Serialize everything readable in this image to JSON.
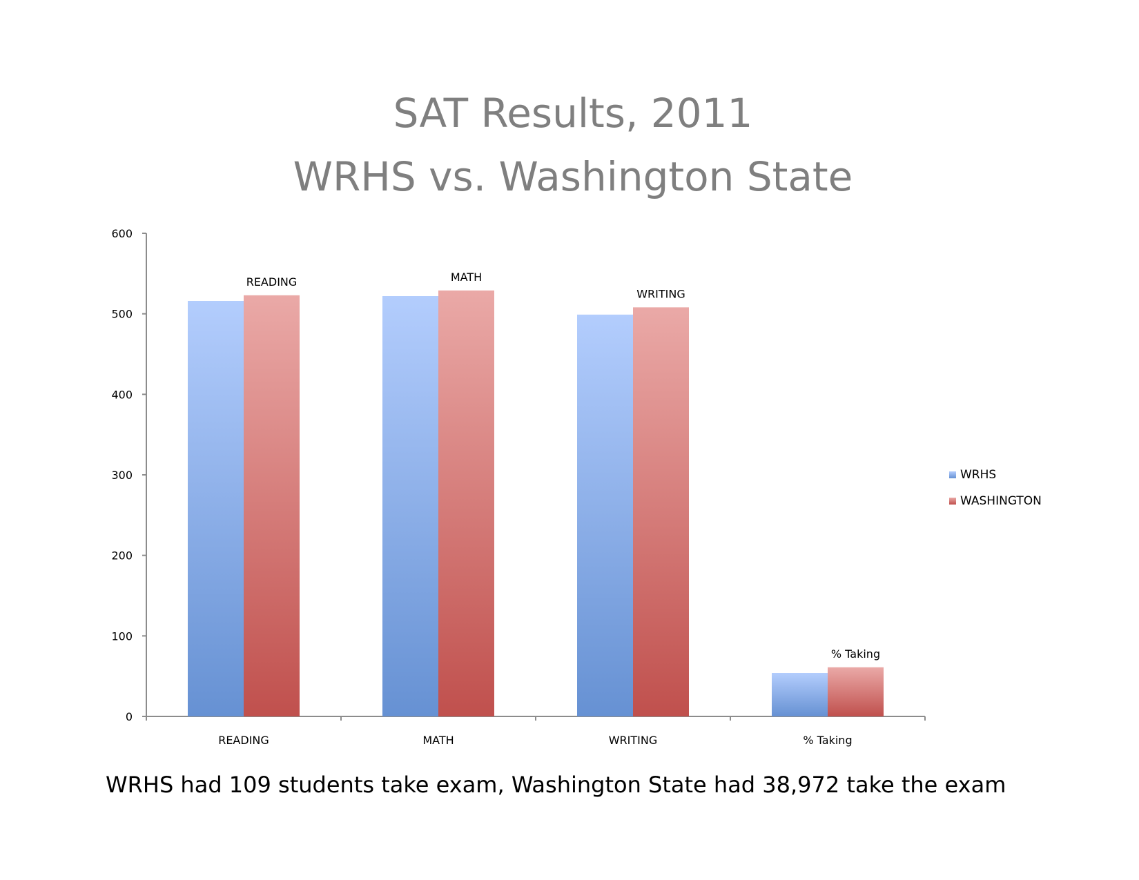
{
  "chart_data": {
    "type": "bar",
    "title": [
      "SAT Results, 2011",
      "WRHS  vs. Washington State"
    ],
    "categories": [
      "READING",
      "MATH",
      "WRITING",
      "% Taking"
    ],
    "series": [
      {
        "name": "WRHS",
        "values": [
          516,
          522,
          499,
          54
        ]
      },
      {
        "name": "WASHINGTON",
        "values": [
          523,
          529,
          508,
          61
        ]
      }
    ],
    "ylim": [
      0,
      600
    ],
    "yticks": [
      0,
      100,
      200,
      300,
      400,
      500,
      600
    ],
    "grid": false,
    "legend": "right",
    "data_labels": [
      "READING",
      "MATH",
      "WRITING",
      "% Taking"
    ],
    "colors": {
      "WRHS": [
        "#b3cdfd",
        "#6691d3"
      ],
      "WASHINGTON": [
        "#eaa9a7",
        "#c0504d"
      ]
    }
  },
  "caption": "WRHS had 109 students take exam, Washington State had 38,972 take the exam"
}
